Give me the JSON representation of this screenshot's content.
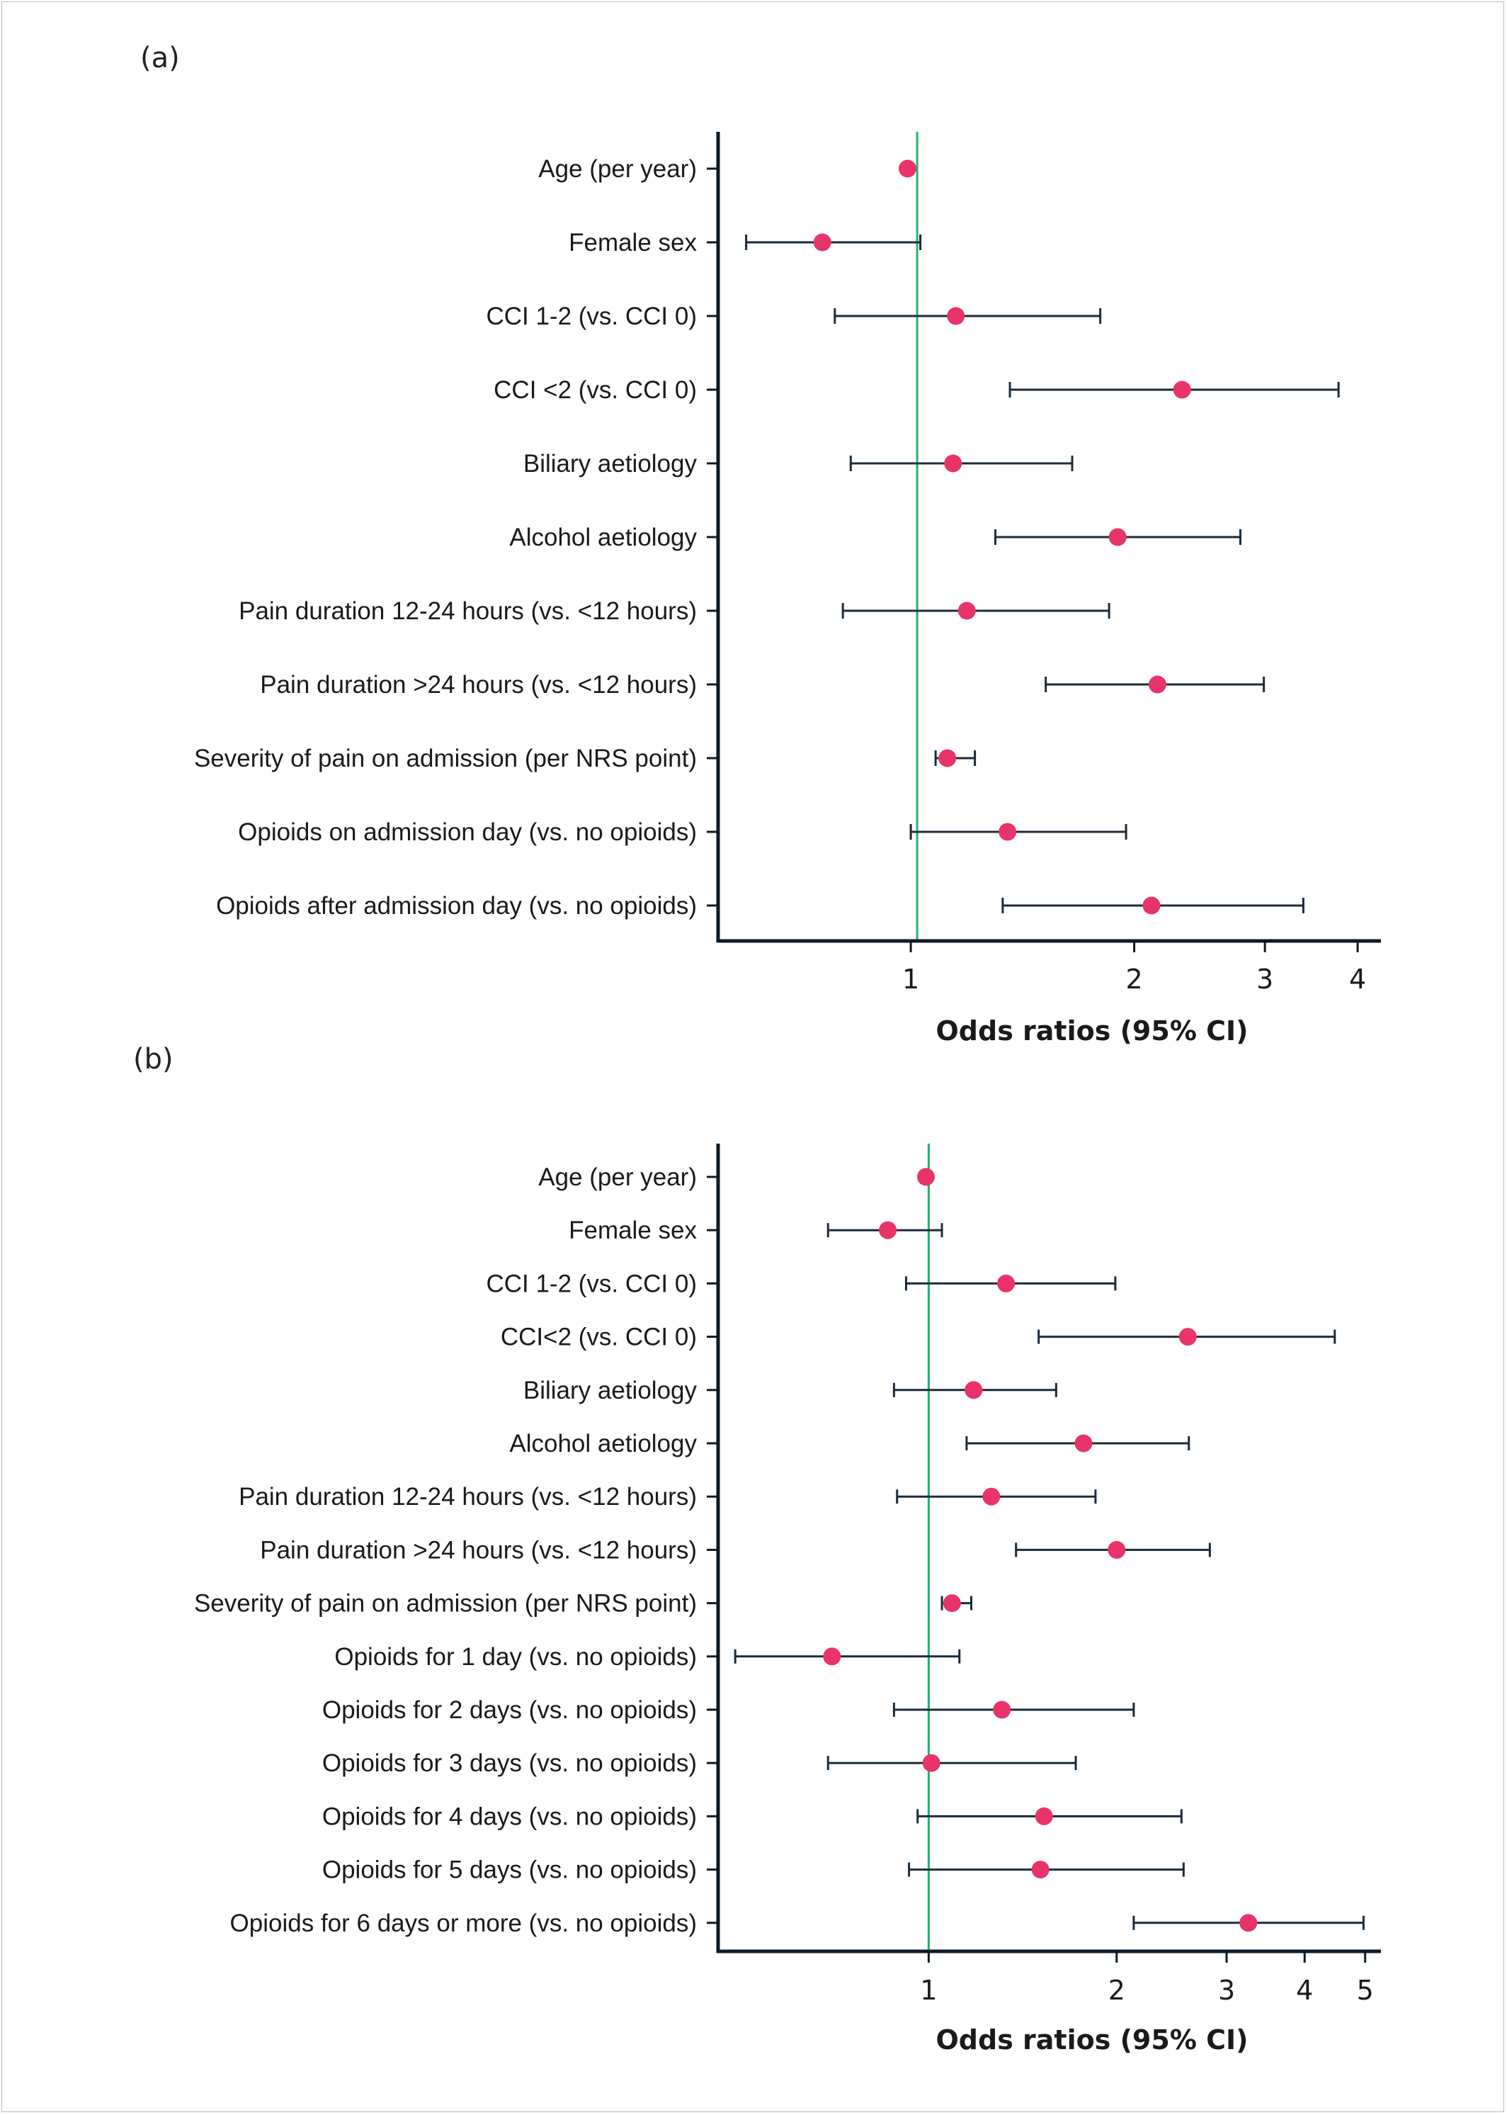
{
  "chart_data": [
    {
      "type": "forest",
      "panel_label": "(a)",
      "xlabel": "Odds ratios (95% CI)",
      "x_scale": "log",
      "xlim": [
        0.55,
        4.3
      ],
      "x_ticks": [
        1,
        2,
        3,
        4
      ],
      "x_tick_labels": [
        "1",
        "2",
        "3",
        "4"
      ],
      "reference_line": 1.02,
      "colors": {
        "point": "#e8336b",
        "reference": "#1db36c",
        "whisker": "#1c2b3a",
        "axis": "#0d1a26"
      },
      "categories": [
        "Age (per year)",
        "Female sex",
        "CCI 1-2 (vs. CCI 0)",
        "CCI <2 (vs. CCI 0)",
        "Biliary aetiology",
        "Alcohol aetiology",
        "Pain duration 12-24 hours (vs. <12 hours)",
        "Pain duration >24 hours (vs. <12 hours)",
        "Severity of pain on admission (per NRS point)",
        "Opioids on admission day (vs. no opioids)",
        "Opioids after admission day (vs. no opioids)"
      ],
      "estimates": [
        0.99,
        0.76,
        1.15,
        2.32,
        1.14,
        1.9,
        1.19,
        2.15,
        1.12,
        1.35,
        2.11
      ],
      "ci_low": [
        null,
        0.6,
        0.79,
        1.36,
        0.83,
        1.3,
        0.81,
        1.52,
        1.08,
        1.0,
        1.33
      ],
      "ci_high": [
        null,
        1.03,
        1.8,
        3.77,
        1.65,
        2.78,
        1.85,
        2.99,
        1.22,
        1.95,
        3.38
      ]
    },
    {
      "type": "forest",
      "panel_label": "(b)",
      "xlabel": "Odds ratios (95% CI)",
      "x_scale": "log",
      "xlim": [
        0.46,
        5.3
      ],
      "x_ticks": [
        1,
        2,
        3,
        4,
        5
      ],
      "x_tick_labels": [
        "1",
        "2",
        "3",
        "4",
        "5"
      ],
      "reference_line": 1.0,
      "colors": {
        "point": "#e8336b",
        "reference": "#1db36c",
        "whisker": "#1c2b3a",
        "axis": "#0d1a26"
      },
      "categories": [
        "Age (per year)",
        "Female sex",
        "CCI 1-2 (vs. CCI 0)",
        "CCI<2 (vs. CCI 0)",
        "Biliary aetiology",
        "Alcohol aetiology",
        "Pain duration 12-24 hours (vs. <12 hours)",
        "Pain duration >24 hours (vs. <12 hours)",
        "Severity of pain on admission (per NRS point)",
        "Opioids for 1 day (vs. no opioids)",
        "Opioids for 2 days (vs. no opioids)",
        "Opioids for 3 days (vs. no opioids)",
        "Opioids for 4 days (vs. no opioids)",
        "Opioids for 5 days (vs. no opioids)",
        "Opioids for 6 days or more (vs. no opioids)"
      ],
      "estimates": [
        0.99,
        0.86,
        1.33,
        2.6,
        1.18,
        1.77,
        1.26,
        2.0,
        1.09,
        0.7,
        1.31,
        1.01,
        1.53,
        1.51,
        3.25
      ],
      "ci_low": [
        null,
        0.69,
        0.92,
        1.5,
        0.88,
        1.15,
        0.89,
        1.38,
        1.05,
        0.49,
        0.88,
        0.69,
        0.96,
        0.93,
        2.13
      ],
      "ci_high": [
        null,
        1.05,
        1.99,
        4.47,
        1.6,
        2.61,
        1.85,
        2.82,
        1.17,
        1.12,
        2.13,
        1.72,
        2.54,
        2.56,
        4.97
      ]
    }
  ]
}
